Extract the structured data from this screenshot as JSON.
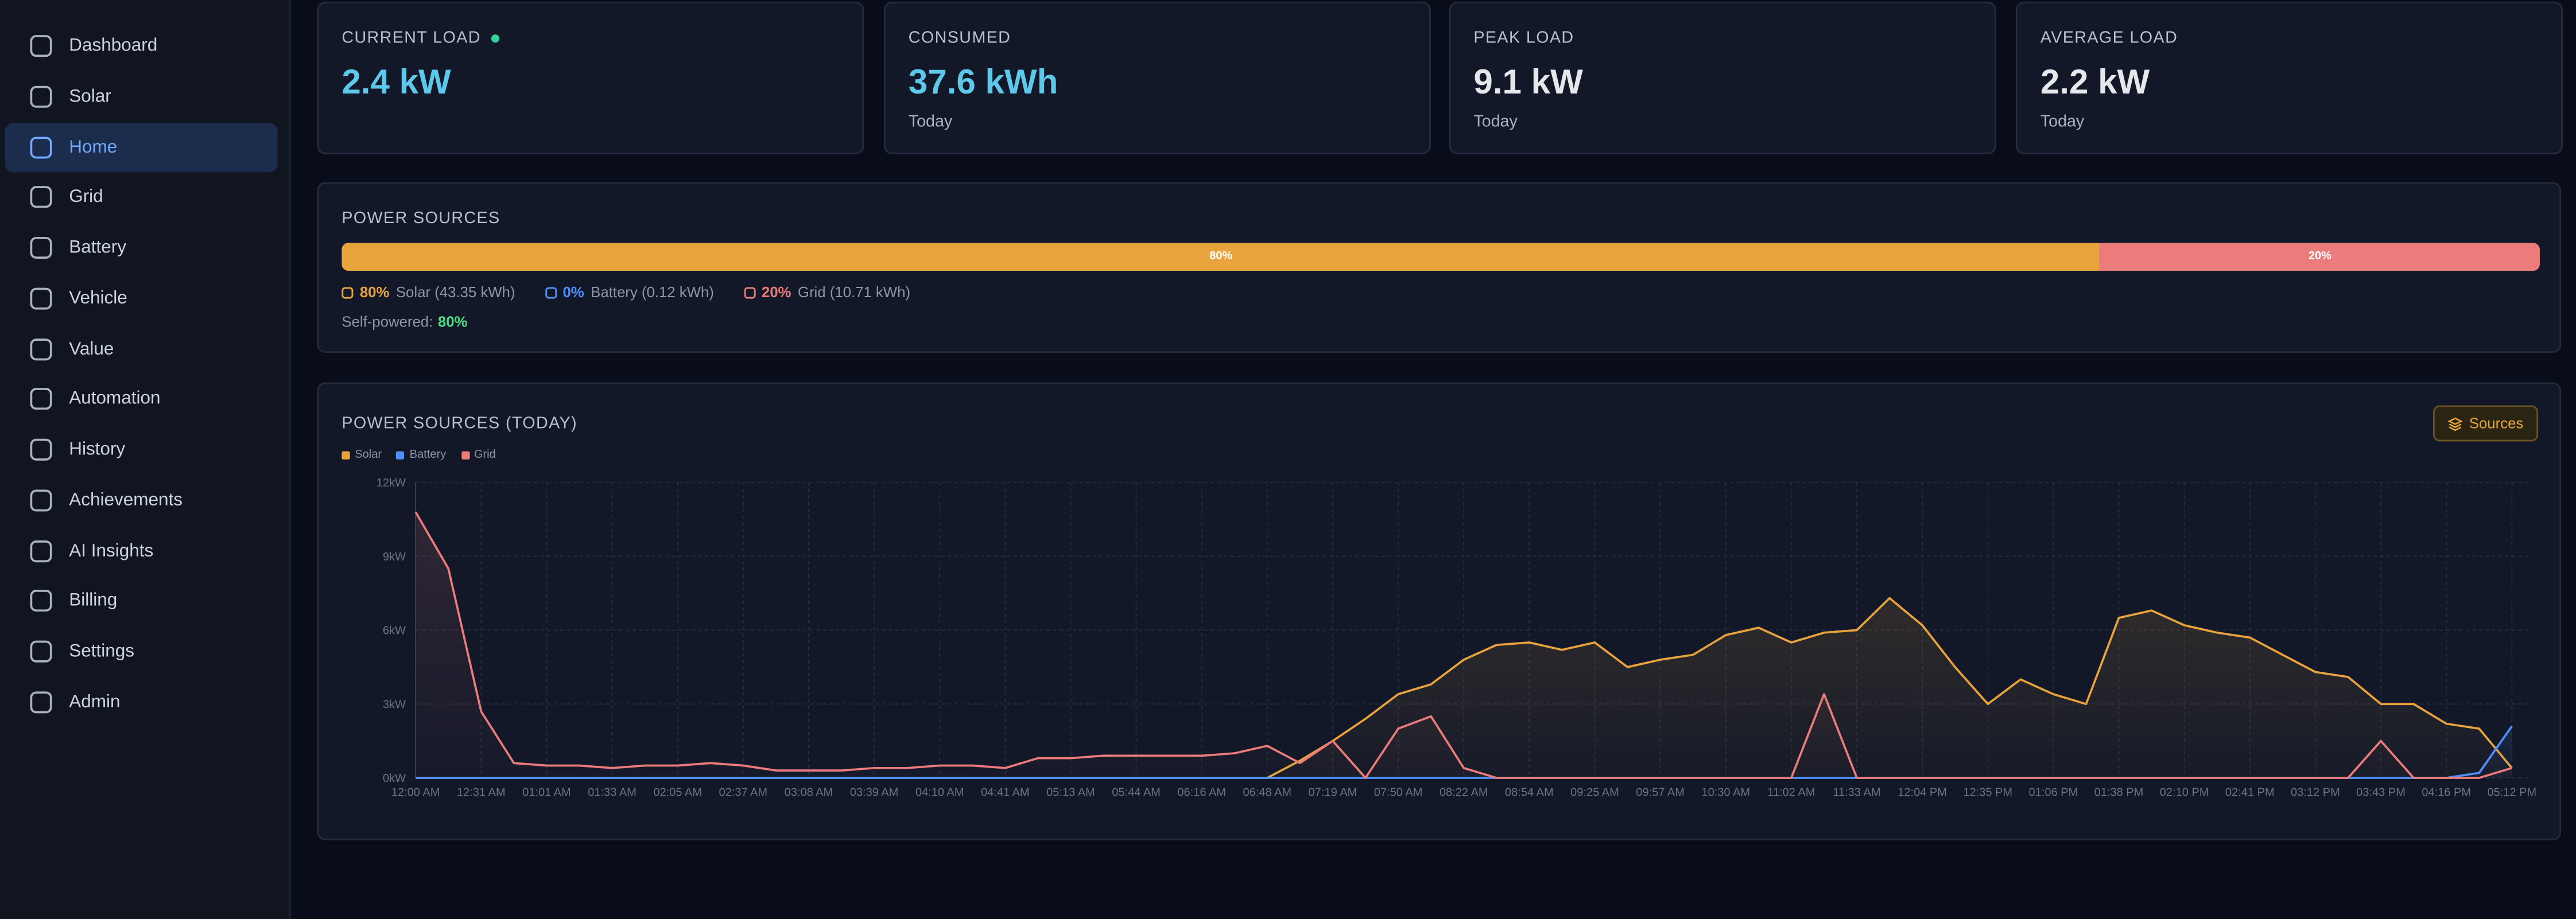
{
  "sidebar": {
    "items": [
      {
        "label": "Dashboard"
      },
      {
        "label": "Solar"
      },
      {
        "label": "Home",
        "active": true
      },
      {
        "label": "Grid"
      },
      {
        "label": "Battery"
      },
      {
        "label": "Vehicle"
      },
      {
        "label": "Value"
      },
      {
        "label": "Automation"
      },
      {
        "label": "History"
      },
      {
        "label": "Achievements"
      },
      {
        "label": "AI Insights"
      },
      {
        "label": "Billing"
      },
      {
        "label": "Settings"
      },
      {
        "label": "Admin"
      }
    ]
  },
  "cards": [
    {
      "label": "CURRENT LOAD",
      "value": "2.4 kW",
      "live": true,
      "color": "#5ec8ea"
    },
    {
      "label": "CONSUMED",
      "value": "37.6 kWh",
      "sub": "Today",
      "color": "#5ec8ea"
    },
    {
      "label": "PEAK LOAD",
      "value": "9.1 kW",
      "sub": "Today",
      "color": "#e5e7eb"
    },
    {
      "label": "AVERAGE LOAD",
      "value": "2.2 kW",
      "sub": "Today",
      "color": "#e5e7eb"
    }
  ],
  "power_sources": {
    "title": "POWER SOURCES",
    "segments": [
      {
        "name": "Solar",
        "value": 80,
        "label": "80%",
        "detail": "Solar (43.35 kWh)",
        "color": "#e8a33d"
      },
      {
        "name": "Battery",
        "value": 0,
        "label": "0%",
        "detail": "Battery (0.12 kWh)",
        "color": "#4f8ff7"
      },
      {
        "name": "Grid",
        "value": 20,
        "label": "20%",
        "detail": "Grid (10.71 kWh)",
        "color": "#ec7b7b"
      }
    ],
    "self_powered": {
      "label": "Self-powered:",
      "value": "80%"
    }
  },
  "chart_panel": {
    "button": "Sources"
  },
  "chart_data": {
    "type": "line",
    "title": "POWER SOURCES (TODAY)",
    "grid": true,
    "categories": [
      "12:00 AM",
      null,
      "12:31 AM",
      null,
      "01:01 AM",
      null,
      "01:33 AM",
      null,
      "02:05 AM",
      null,
      "02:37 AM",
      null,
      "03:08 AM",
      null,
      "03:39 AM",
      null,
      "04:10 AM",
      null,
      "04:41 AM",
      null,
      "05:13 AM",
      null,
      "05:44 AM",
      null,
      "06:16 AM",
      null,
      "06:48 AM",
      null,
      "07:19 AM",
      null,
      "07:50 AM",
      null,
      "08:22 AM",
      null,
      "08:54 AM",
      null,
      "09:25 AM",
      null,
      "09:57 AM",
      null,
      "10:30 AM",
      null,
      "11:02 AM",
      null,
      "11:33 AM",
      null,
      "12:04 PM",
      null,
      "12:35 PM",
      null,
      "01:06 PM",
      null,
      "01:38 PM",
      null,
      "02:10 PM",
      null,
      "02:41 PM",
      null,
      "03:12 PM",
      null,
      "03:43 PM",
      null,
      "04:16 PM",
      null,
      "05:12 PM"
    ],
    "ylim": [
      0,
      12
    ],
    "yticks": [
      {
        "value": 0,
        "label": "0kW"
      },
      {
        "value": 3,
        "label": "3kW"
      },
      {
        "value": 6,
        "label": "6kW"
      },
      {
        "value": 9,
        "label": "9kW"
      },
      {
        "value": 12,
        "label": "12kW"
      }
    ],
    "series": [
      {
        "name": "Solar",
        "color": "#e8a33d",
        "values": [
          0,
          0,
          0,
          0,
          0,
          0,
          0,
          0,
          0,
          0,
          0,
          0,
          0,
          0,
          0,
          0,
          0,
          0,
          0,
          0,
          0,
          0,
          0,
          0,
          0,
          0,
          0,
          0.7,
          1.5,
          2.4,
          3.4,
          3.8,
          4.8,
          5.4,
          5.5,
          5.2,
          5.5,
          4.5,
          4.8,
          5.0,
          5.8,
          6.1,
          5.5,
          5.9,
          6.0,
          7.3,
          6.2,
          4.5,
          3.0,
          4.0,
          3.4,
          3.0,
          6.5,
          6.8,
          6.2,
          5.9,
          5.7,
          5.0,
          4.3,
          4.1,
          3.0,
          3.0,
          2.2,
          2.0,
          0.4
        ]
      },
      {
        "name": "Battery",
        "color": "#4f8ff7",
        "values": [
          0,
          0,
          0,
          0,
          0,
          0,
          0,
          0,
          0,
          0,
          0,
          0,
          0,
          0,
          0,
          0,
          0,
          0,
          0,
          0,
          0,
          0,
          0,
          0,
          0,
          0,
          0,
          0,
          0,
          0,
          0,
          0,
          0,
          0,
          0,
          0,
          0,
          0,
          0,
          0,
          0,
          0,
          0,
          0,
          0,
          0,
          0,
          0,
          0,
          0,
          0,
          0,
          0,
          0,
          0,
          0,
          0,
          0,
          0,
          0,
          0,
          0,
          0,
          0.2,
          2.1
        ]
      },
      {
        "name": "Grid",
        "color": "#ec7b7b",
        "values": [
          10.8,
          8.5,
          2.7,
          0.6,
          0.5,
          0.5,
          0.4,
          0.5,
          0.5,
          0.6,
          0.5,
          0.3,
          0.3,
          0.3,
          0.4,
          0.4,
          0.5,
          0.5,
          0.4,
          0.8,
          0.8,
          0.9,
          0.9,
          0.9,
          0.9,
          1.0,
          1.3,
          0.6,
          1.5,
          0,
          2.0,
          2.5,
          0.4,
          0,
          0,
          0,
          0,
          0,
          0,
          0,
          0,
          0,
          0,
          3.4,
          0,
          0,
          0,
          0,
          0,
          0,
          0,
          0,
          0,
          0,
          0,
          0,
          0,
          0,
          0,
          0,
          1.5,
          0,
          0,
          0,
          0.4
        ]
      }
    ]
  }
}
